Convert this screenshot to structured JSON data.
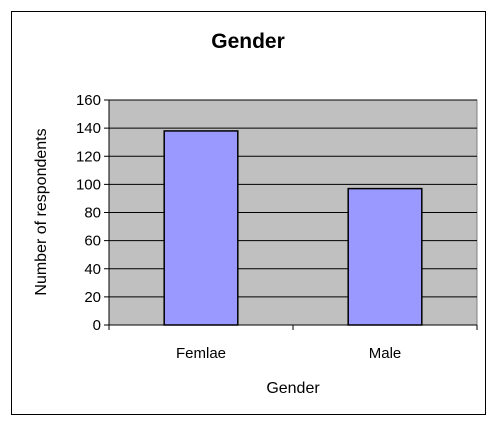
{
  "chart_data": {
    "type": "bar",
    "title": "Gender",
    "xlabel": "Gender",
    "ylabel": "Number of respondents",
    "categories": [
      "Femlae",
      "Male"
    ],
    "values": [
      138,
      97
    ],
    "ylim": [
      0,
      160
    ],
    "yticks": [
      0,
      20,
      40,
      60,
      80,
      100,
      120,
      140,
      160
    ],
    "grid": true,
    "legend": "none",
    "colors": {
      "plot_background": "#c0c0c0",
      "bar_fill": "#9999ff",
      "bar_stroke": "#000000",
      "grid": "#000000"
    }
  }
}
